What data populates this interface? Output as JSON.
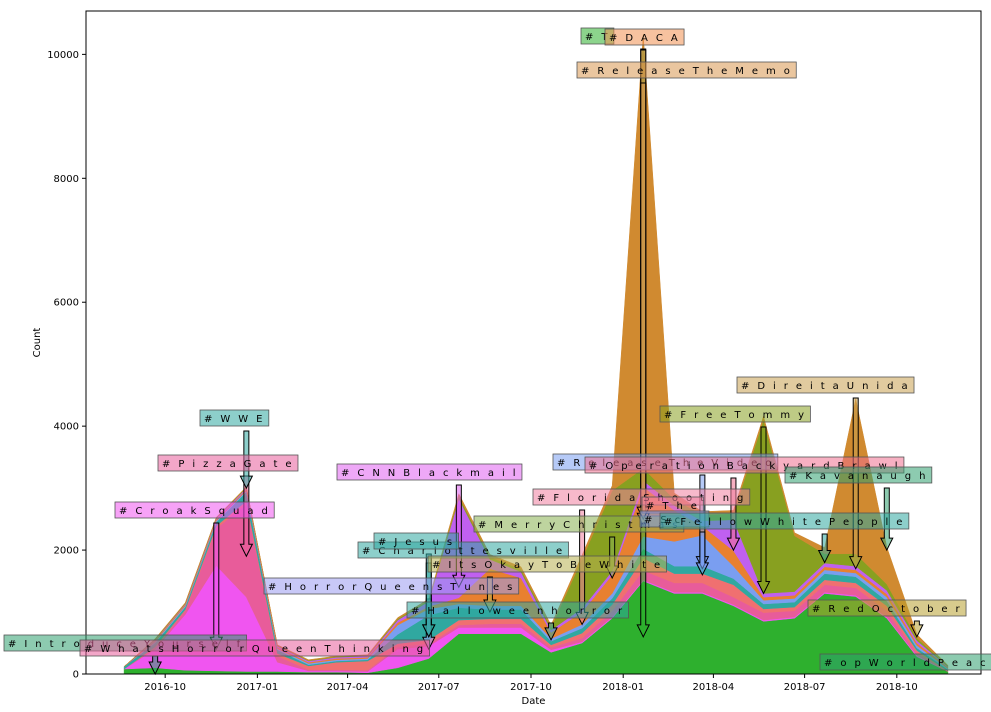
{
  "chart_data": {
    "type": "area",
    "stacked": true,
    "xlabel": "Date",
    "ylabel": "Count",
    "xlim": [
      "2016-07-14",
      "2018-12-24"
    ],
    "ylim": [
      0,
      10700
    ],
    "x_ticks": [
      "2016-10",
      "2017-01",
      "2017-04",
      "2017-07",
      "2017-10",
      "2018-01",
      "2018-04",
      "2018-07",
      "2018-10"
    ],
    "y_ticks": [
      0,
      2000,
      4000,
      6000,
      8000,
      10000
    ],
    "grid": false,
    "x": [
      "2016-08-21",
      "2016-09-21",
      "2016-10-21",
      "2016-11-21",
      "2016-12-21",
      "2017-01-21",
      "2017-02-21",
      "2017-03-21",
      "2017-04-21",
      "2017-05-21",
      "2017-06-21",
      "2017-07-21",
      "2017-08-21",
      "2017-09-21",
      "2017-10-21",
      "2017-11-21",
      "2017-12-21",
      "2018-01-21",
      "2018-02-21",
      "2018-03-21",
      "2018-04-21",
      "2018-05-21",
      "2018-06-21",
      "2018-07-21",
      "2018-08-21",
      "2018-09-21",
      "2018-10-21",
      "2018-11-21"
    ],
    "series": [
      {
        "color": "#2eb02e",
        "values": [
          80,
          100,
          60,
          50,
          40,
          40,
          30,
          30,
          20,
          100,
          250,
          650,
          650,
          650,
          350,
          500,
          900,
          1500,
          1300,
          1300,
          1100,
          850,
          900,
          1300,
          1250,
          900,
          280,
          40
        ]
      },
      {
        "color": "#f055f0",
        "values": [
          0,
          300,
          900,
          1700,
          1200,
          150,
          20,
          20,
          20,
          300,
          200,
          100,
          100,
          100,
          40,
          20,
          20,
          20,
          20,
          20,
          20,
          20,
          20,
          20,
          20,
          20,
          20,
          0
        ]
      },
      {
        "color": "#e85c9a",
        "values": [
          0,
          20,
          60,
          600,
          1500,
          100,
          20,
          20,
          20,
          40,
          40,
          40,
          60,
          60,
          40,
          60,
          100,
          150,
          150,
          150,
          120,
          120,
          100,
          120,
          120,
          100,
          40,
          0
        ]
      },
      {
        "color": "#f07070",
        "values": [
          0,
          20,
          20,
          40,
          50,
          40,
          60,
          120,
          150,
          50,
          60,
          80,
          80,
          80,
          40,
          80,
          100,
          200,
          150,
          150,
          200,
          60,
          60,
          80,
          80,
          80,
          40,
          10
        ]
      },
      {
        "color": "#30a8a0",
        "values": [
          40,
          60,
          40,
          60,
          150,
          60,
          20,
          20,
          20,
          150,
          400,
          200,
          150,
          150,
          60,
          80,
          100,
          150,
          120,
          120,
          100,
          80,
          80,
          100,
          100,
          80,
          40,
          20
        ]
      },
      {
        "color": "#7a9ef0",
        "values": [
          0,
          20,
          20,
          20,
          20,
          20,
          20,
          20,
          20,
          150,
          100,
          60,
          60,
          60,
          40,
          60,
          80,
          200,
          400,
          500,
          200,
          60,
          60,
          60,
          60,
          60,
          40,
          20
        ]
      },
      {
        "color": "#e88030",
        "values": [
          0,
          20,
          20,
          20,
          20,
          20,
          20,
          20,
          20,
          40,
          40,
          100,
          600,
          450,
          100,
          200,
          300,
          800,
          500,
          150,
          250,
          50,
          50,
          50,
          50,
          50,
          40,
          20
        ]
      },
      {
        "color": "#c060f0",
        "values": [
          0,
          10,
          10,
          20,
          20,
          20,
          20,
          20,
          20,
          40,
          80,
          1600,
          150,
          100,
          40,
          60,
          60,
          100,
          80,
          80,
          500,
          60,
          60,
          60,
          60,
          60,
          40,
          10
        ]
      },
      {
        "color": "#88a020",
        "values": [
          0,
          10,
          10,
          10,
          10,
          10,
          10,
          10,
          10,
          20,
          20,
          40,
          40,
          40,
          40,
          800,
          1300,
          200,
          100,
          100,
          100,
          2800,
          900,
          150,
          200,
          100,
          40,
          10
        ]
      },
      {
        "color": "#d08a30",
        "values": [
          0,
          10,
          10,
          10,
          10,
          10,
          10,
          10,
          10,
          20,
          20,
          40,
          40,
          40,
          40,
          60,
          80,
          7000,
          100,
          50,
          50,
          60,
          50,
          100,
          2500,
          600,
          60,
          10
        ]
      }
    ],
    "annotations": [
      {
        "label": "# I n t r o d u c e Y o u r s e l f",
        "date": "2016-09-21",
        "tip": 0,
        "box_y": 10700,
        "color": "#30a070"
      },
      {
        "label": "# W h a t s H o r r o r Q u e e n T h i n k i n g",
        "date": "2016-11-21",
        "tip": 0,
        "box_y": 10700,
        "color": "#e85c9a"
      },
      {
        "label": "# C r o a k S q u a d",
        "date": "2016-11-21",
        "tip": 400,
        "box_y": 10700,
        "color": "#f055f0"
      },
      {
        "label": "# P i z z a G a t e",
        "date": "2016-12-21",
        "tip": 1900,
        "box_y": 10700,
        "color": "#e85c9a"
      },
      {
        "label": "# W W E",
        "date": "2016-12-21",
        "tip": 3000,
        "box_y": 10700,
        "color": "#30a8a0"
      },
      {
        "label": "# H o r r o r Q u e e n s T u n e s",
        "date": "2017-06-21",
        "tip": 400,
        "box_y": 10700,
        "color": "#9a9af0"
      },
      {
        "label": "# C h a r l o t t e s v i l l e",
        "date": "2017-06-21",
        "tip": 600,
        "box_y": 10700,
        "color": "#30a8a0"
      },
      {
        "label": "# J e s u s",
        "date": "2017-06-21",
        "tip": 600,
        "box_y": 10700,
        "color": "#30a8a0"
      },
      {
        "label": "# C N N B l a c k m a i l",
        "date": "2017-07-21",
        "tip": 1400,
        "box_y": 10700,
        "color": "#e060f0"
      },
      {
        "label": "# I t s O k a y T o B e W h i t e",
        "date": "2017-08-21",
        "tip": 1000,
        "box_y": 10700,
        "color": "#b8b050"
      },
      {
        "label": "# H a l l o w e e n h o r r o r",
        "date": "2017-10-21",
        "tip": 550,
        "box_y": 10700,
        "color": "#30a8a0"
      },
      {
        "label": "# M e r r y C h r i s t m a s",
        "date": "2017-12-21",
        "tip": 1550,
        "box_y": 10700,
        "color": "#88b050"
      },
      {
        "label": "# F l o r i d a S h o o t i n g",
        "date": "2017-11-21",
        "tip": 800,
        "box_y": 10700,
        "color": "#f080a0"
      },
      {
        "label": "# R e l e a s e T h e V i d e o",
        "date": "2018-03-21",
        "tip": 1700,
        "box_y": 10700,
        "color": "#7a9ef0"
      },
      {
        "label": "# O p e r a t i o n B a c k y a r d B r a w l",
        "date": "2018-04-21",
        "tip": 2000,
        "box_y": 10700,
        "color": "#f07090"
      },
      {
        "label": "# T h e",
        "date": "2018-02-21",
        "tip": 2300,
        "box_y": 10700,
        "color": "#f080a0"
      },
      {
        "label": "# S c ...",
        "date": "2018-03-21",
        "tip": 1600,
        "box_y": 10700,
        "color": "#7a9ef0"
      },
      {
        "label": "# F e l l o w W h i t e P e o p l e",
        "date": "2018-07-21",
        "tip": 1800,
        "box_y": 10700,
        "color": "#30a8a0"
      },
      {
        "label": "# T",
        "date": "2018-01-21",
        "tip": 600,
        "box_y": 10700,
        "color": "#2eb02e"
      },
      {
        "label": "# D A C A",
        "date": "2018-01-21",
        "tip": 2400,
        "box_y": 10700,
        "color": "#f09050"
      },
      {
        "label": "# R e l e a s e T h e M e m o",
        "date": "2018-01-21",
        "tip": 2500,
        "box_y": 10700,
        "color": "#d89850"
      },
      {
        "label": "# F r e e T o m m y",
        "date": "2018-05-21",
        "tip": 1300,
        "box_y": 10700,
        "color": "#88a020"
      },
      {
        "label": "# D i r e i t a U n i d a",
        "date": "2018-08-21",
        "tip": 1700,
        "box_y": 10700,
        "color": "#c8a050"
      },
      {
        "label": "# K a v a n a u g h",
        "date": "2018-09-21",
        "tip": 2000,
        "box_y": 10700,
        "color": "#30a070"
      },
      {
        "label": "# R e d O c t o b e r",
        "date": "2018-10-21",
        "tip": 600,
        "box_y": 10700,
        "color": "#b8a030"
      },
      {
        "label": "# o p W o r l d P e a c e",
        "date": "2018-11-21",
        "tip": 100,
        "box_y": 10700,
        "color": "#30a070"
      }
    ]
  }
}
